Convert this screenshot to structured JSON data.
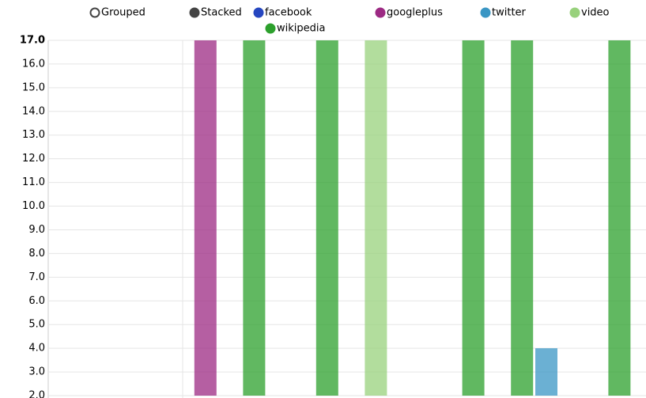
{
  "chart_data": {
    "type": "bar",
    "controls": [
      "Grouped",
      "Stacked"
    ],
    "categories": [
      null,
      null,
      null,
      null,
      null,
      null,
      null,
      null,
      null,
      null,
      null,
      null,
      null,
      null,
      null,
      null,
      null,
      null,
      null,
      null,
      null,
      null,
      null,
      null
    ],
    "series": [
      {
        "name": "facebook",
        "color": "#2546c0",
        "values": [
          null,
          null,
          null,
          null,
          null,
          null,
          null,
          null,
          null,
          null,
          null,
          null,
          null,
          null,
          null,
          null,
          null,
          null,
          null,
          null,
          null,
          null,
          null,
          null
        ]
      },
      {
        "name": "googleplus",
        "color": "#9c2a83",
        "values": [
          null,
          null,
          null,
          null,
          null,
          null,
          17,
          null,
          null,
          null,
          null,
          null,
          null,
          null,
          null,
          null,
          null,
          null,
          null,
          null,
          null,
          null,
          null,
          null
        ]
      },
      {
        "name": "twitter",
        "color": "#3a96c4",
        "values": [
          null,
          null,
          null,
          null,
          null,
          null,
          null,
          null,
          null,
          null,
          null,
          null,
          null,
          null,
          null,
          null,
          null,
          null,
          null,
          null,
          4,
          null,
          null,
          null
        ]
      },
      {
        "name": "video",
        "color": "#98d17c",
        "values": [
          null,
          null,
          null,
          null,
          null,
          null,
          null,
          null,
          null,
          null,
          null,
          null,
          null,
          17,
          null,
          null,
          null,
          null,
          null,
          null,
          null,
          null,
          null,
          null
        ]
      },
      {
        "name": "wikipedia",
        "color": "#2ca02c",
        "values": [
          null,
          null,
          null,
          null,
          null,
          null,
          null,
          null,
          17,
          null,
          null,
          17,
          null,
          null,
          null,
          null,
          null,
          17,
          null,
          17,
          null,
          null,
          null,
          17
        ]
      }
    ],
    "ylim": [
      2,
      17
    ],
    "yticks": [
      {
        "value": 2,
        "label": "2.0"
      },
      {
        "value": 3,
        "label": "3.0"
      },
      {
        "value": 4,
        "label": "4.0"
      },
      {
        "value": 5,
        "label": "5.0"
      },
      {
        "value": 6,
        "label": "6.0"
      },
      {
        "value": 7,
        "label": "7.0"
      },
      {
        "value": 8,
        "label": "8.0"
      },
      {
        "value": 9,
        "label": "9.0"
      },
      {
        "value": 10,
        "label": "10.0"
      },
      {
        "value": 11,
        "label": "11.0"
      },
      {
        "value": 12,
        "label": "12.0"
      },
      {
        "value": 13,
        "label": "13.0"
      },
      {
        "value": 14,
        "label": "14.0"
      },
      {
        "value": 15,
        "label": "15.0"
      },
      {
        "value": 16,
        "label": "16.0"
      },
      {
        "value": 17,
        "label": "17.0"
      }
    ],
    "grid": true
  }
}
